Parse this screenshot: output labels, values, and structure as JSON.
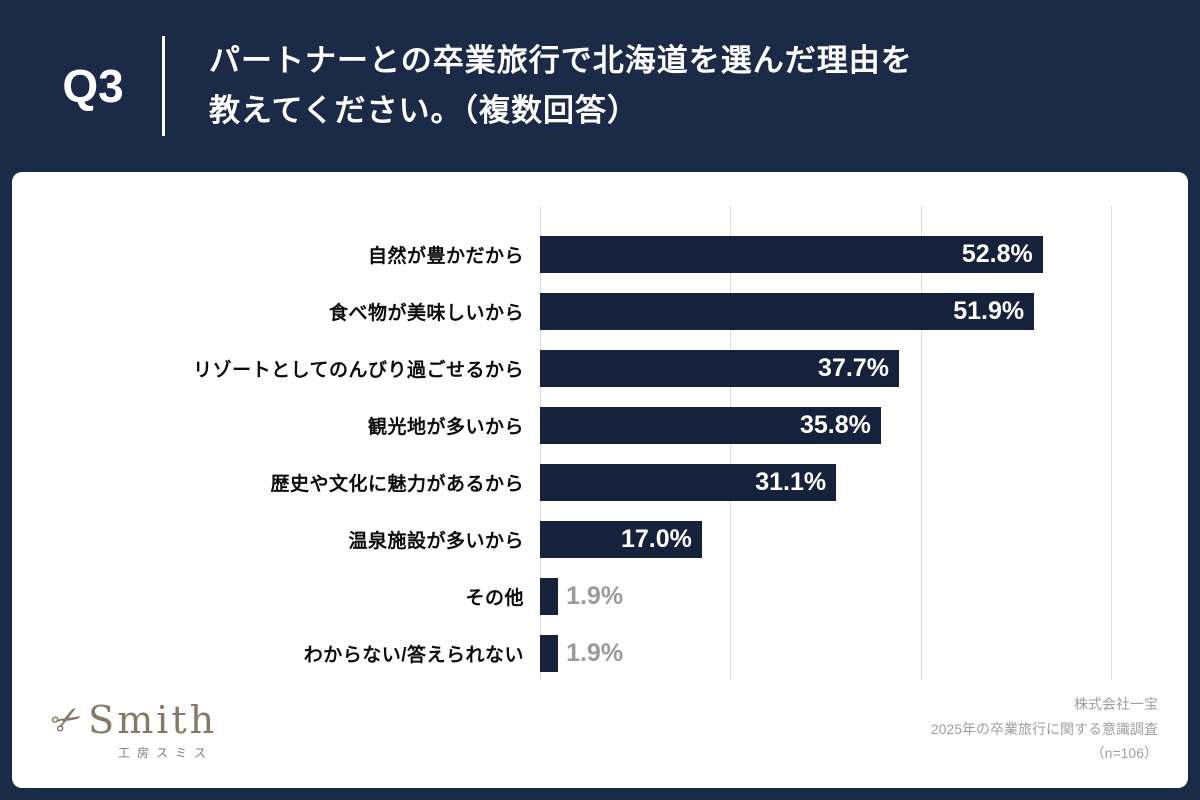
{
  "header": {
    "question_no": "Q3",
    "title_line1": "パートナーとの卒業旅行で北海道を選んだ理由を",
    "title_line2": "教えてください。（複数回答）"
  },
  "chart_data": {
    "type": "bar",
    "orientation": "horizontal",
    "title": "パートナーとの卒業旅行で北海道を選んだ理由を教えてください。（複数回答）",
    "categories": [
      "自然が豊かだから",
      "食べ物が美味しいから",
      "リゾートとしてのんびり過ごせるから",
      "観光地が多いから",
      "歴史や文化に魅力があるから",
      "温泉施設が多いから",
      "その他",
      "わからない/答えられない"
    ],
    "values": [
      52.8,
      51.9,
      37.7,
      35.8,
      31.1,
      17.0,
      1.9,
      1.9
    ],
    "value_labels": [
      "52.8%",
      "51.9%",
      "37.7%",
      "35.8%",
      "31.1%",
      "17.0%",
      "1.9%",
      "1.9%"
    ],
    "xlim": [
      0,
      66.8
    ],
    "gridline_values": [
      0,
      20,
      40,
      60
    ],
    "grid": true,
    "legend": false,
    "small_value_threshold": 5
  },
  "footer": {
    "logo_text": "Smith",
    "logo_subtext": "工房スミス",
    "source_line1": "株式会社一宝",
    "source_line2": "2025年の卒業旅行に関する意識調査",
    "source_line3": "（n=106）"
  },
  "colors": {
    "navy": "#1B2A47",
    "bar": "#16213C",
    "insideval": "#FFFFFF",
    "smallval": "#9B9B9B",
    "logo": "#857A67"
  }
}
